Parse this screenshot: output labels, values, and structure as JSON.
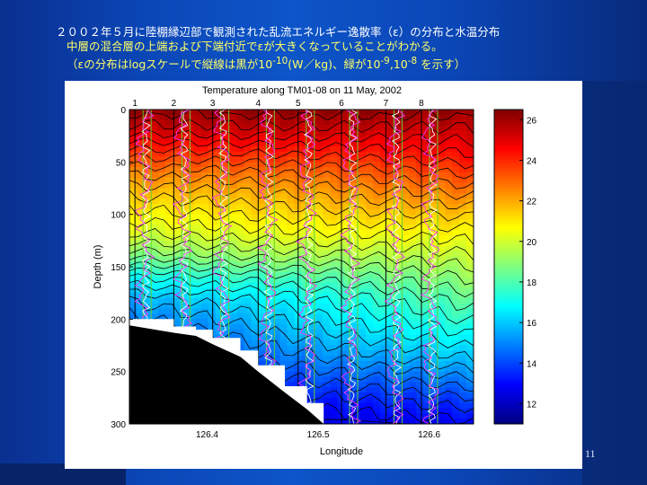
{
  "slide": {
    "caption_line1": "２００２年５月に陸棚縁辺部で観測された乱流エネルギー逸散率（ε）の分布と水温分布",
    "caption_line2": "中層の混合層の上端および下端付近でεが大きくなっていることがわかる。",
    "caption_line3": "（εの分布はlogスケールで縦線は黒が10",
    "caption_sup1": "-10",
    "caption_line3b": "(W／kg)、緑が10",
    "caption_sup2": "-9",
    "caption_line3c": ",10",
    "caption_sup3": "-8",
    "caption_line3d": " を示す）",
    "page_number": "11",
    "colors": {
      "background": "#0b46b6",
      "caption_white": "#ffffff",
      "caption_yellow": "#ffff66",
      "profile_magenta": "#ff33ff",
      "profile_white": "#ffffff",
      "reference_green": "#66cc33",
      "reference_black": "#000000"
    }
  },
  "chart_data": {
    "type": "heatmap",
    "title": "Temperature along TM01-08 on 11 May, 2002",
    "xlabel": "Longitude",
    "ylabel": "Depth (m)",
    "xlim": [
      126.33,
      126.64
    ],
    "ylim": [
      300,
      0
    ],
    "x_ticks": [
      126.4,
      126.5,
      126.6
    ],
    "y_ticks": [
      0,
      50,
      100,
      150,
      200,
      250,
      300
    ],
    "stations": [
      {
        "label": "1",
        "longitude": 126.335
      },
      {
        "label": "2",
        "longitude": 126.37
      },
      {
        "label": "3",
        "longitude": 126.405
      },
      {
        "label": "4",
        "longitude": 126.446
      },
      {
        "label": "5",
        "longitude": 126.482
      },
      {
        "label": "6",
        "longitude": 126.521
      },
      {
        "label": "7",
        "longitude": 126.561
      },
      {
        "label": "8",
        "longitude": 126.593
      }
    ],
    "colorbar": {
      "min": 11,
      "max": 26.5,
      "ticks": [
        12,
        14,
        16,
        18,
        20,
        22,
        24,
        26
      ]
    },
    "temperature_profile": {
      "depth_m": [
        0,
        20,
        40,
        60,
        80,
        100,
        120,
        140,
        160,
        180,
        200,
        220,
        240,
        260,
        280,
        300
      ],
      "temperature_west": [
        26.2,
        25.2,
        23.8,
        22.6,
        21.6,
        20.8,
        19.9,
        18.6,
        16.9,
        15.6,
        14.8,
        14.1,
        13.5,
        13.0,
        12.6,
        12.3
      ],
      "temperature_east": [
        26.2,
        25.4,
        24.6,
        23.6,
        22.6,
        21.6,
        20.7,
        19.9,
        19.1,
        18.3,
        17.6,
        16.8,
        15.9,
        14.8,
        13.7,
        12.8
      ]
    },
    "bottom_depth_m": [
      {
        "longitude": 126.33,
        "depth": 206
      },
      {
        "longitude": 126.37,
        "depth": 213
      },
      {
        "longitude": 126.39,
        "depth": 216
      },
      {
        "longitude": 126.405,
        "depth": 224
      },
      {
        "longitude": 126.43,
        "depth": 236
      },
      {
        "longitude": 126.446,
        "depth": 250
      },
      {
        "longitude": 126.47,
        "depth": 270
      },
      {
        "longitude": 126.49,
        "depth": 286
      },
      {
        "longitude": 126.505,
        "depth": 300
      }
    ],
    "epsilon_reference_lines": "black = 1e-10 W/kg, green = 1e-9 and 1e-8 W/kg (log scale)"
  }
}
